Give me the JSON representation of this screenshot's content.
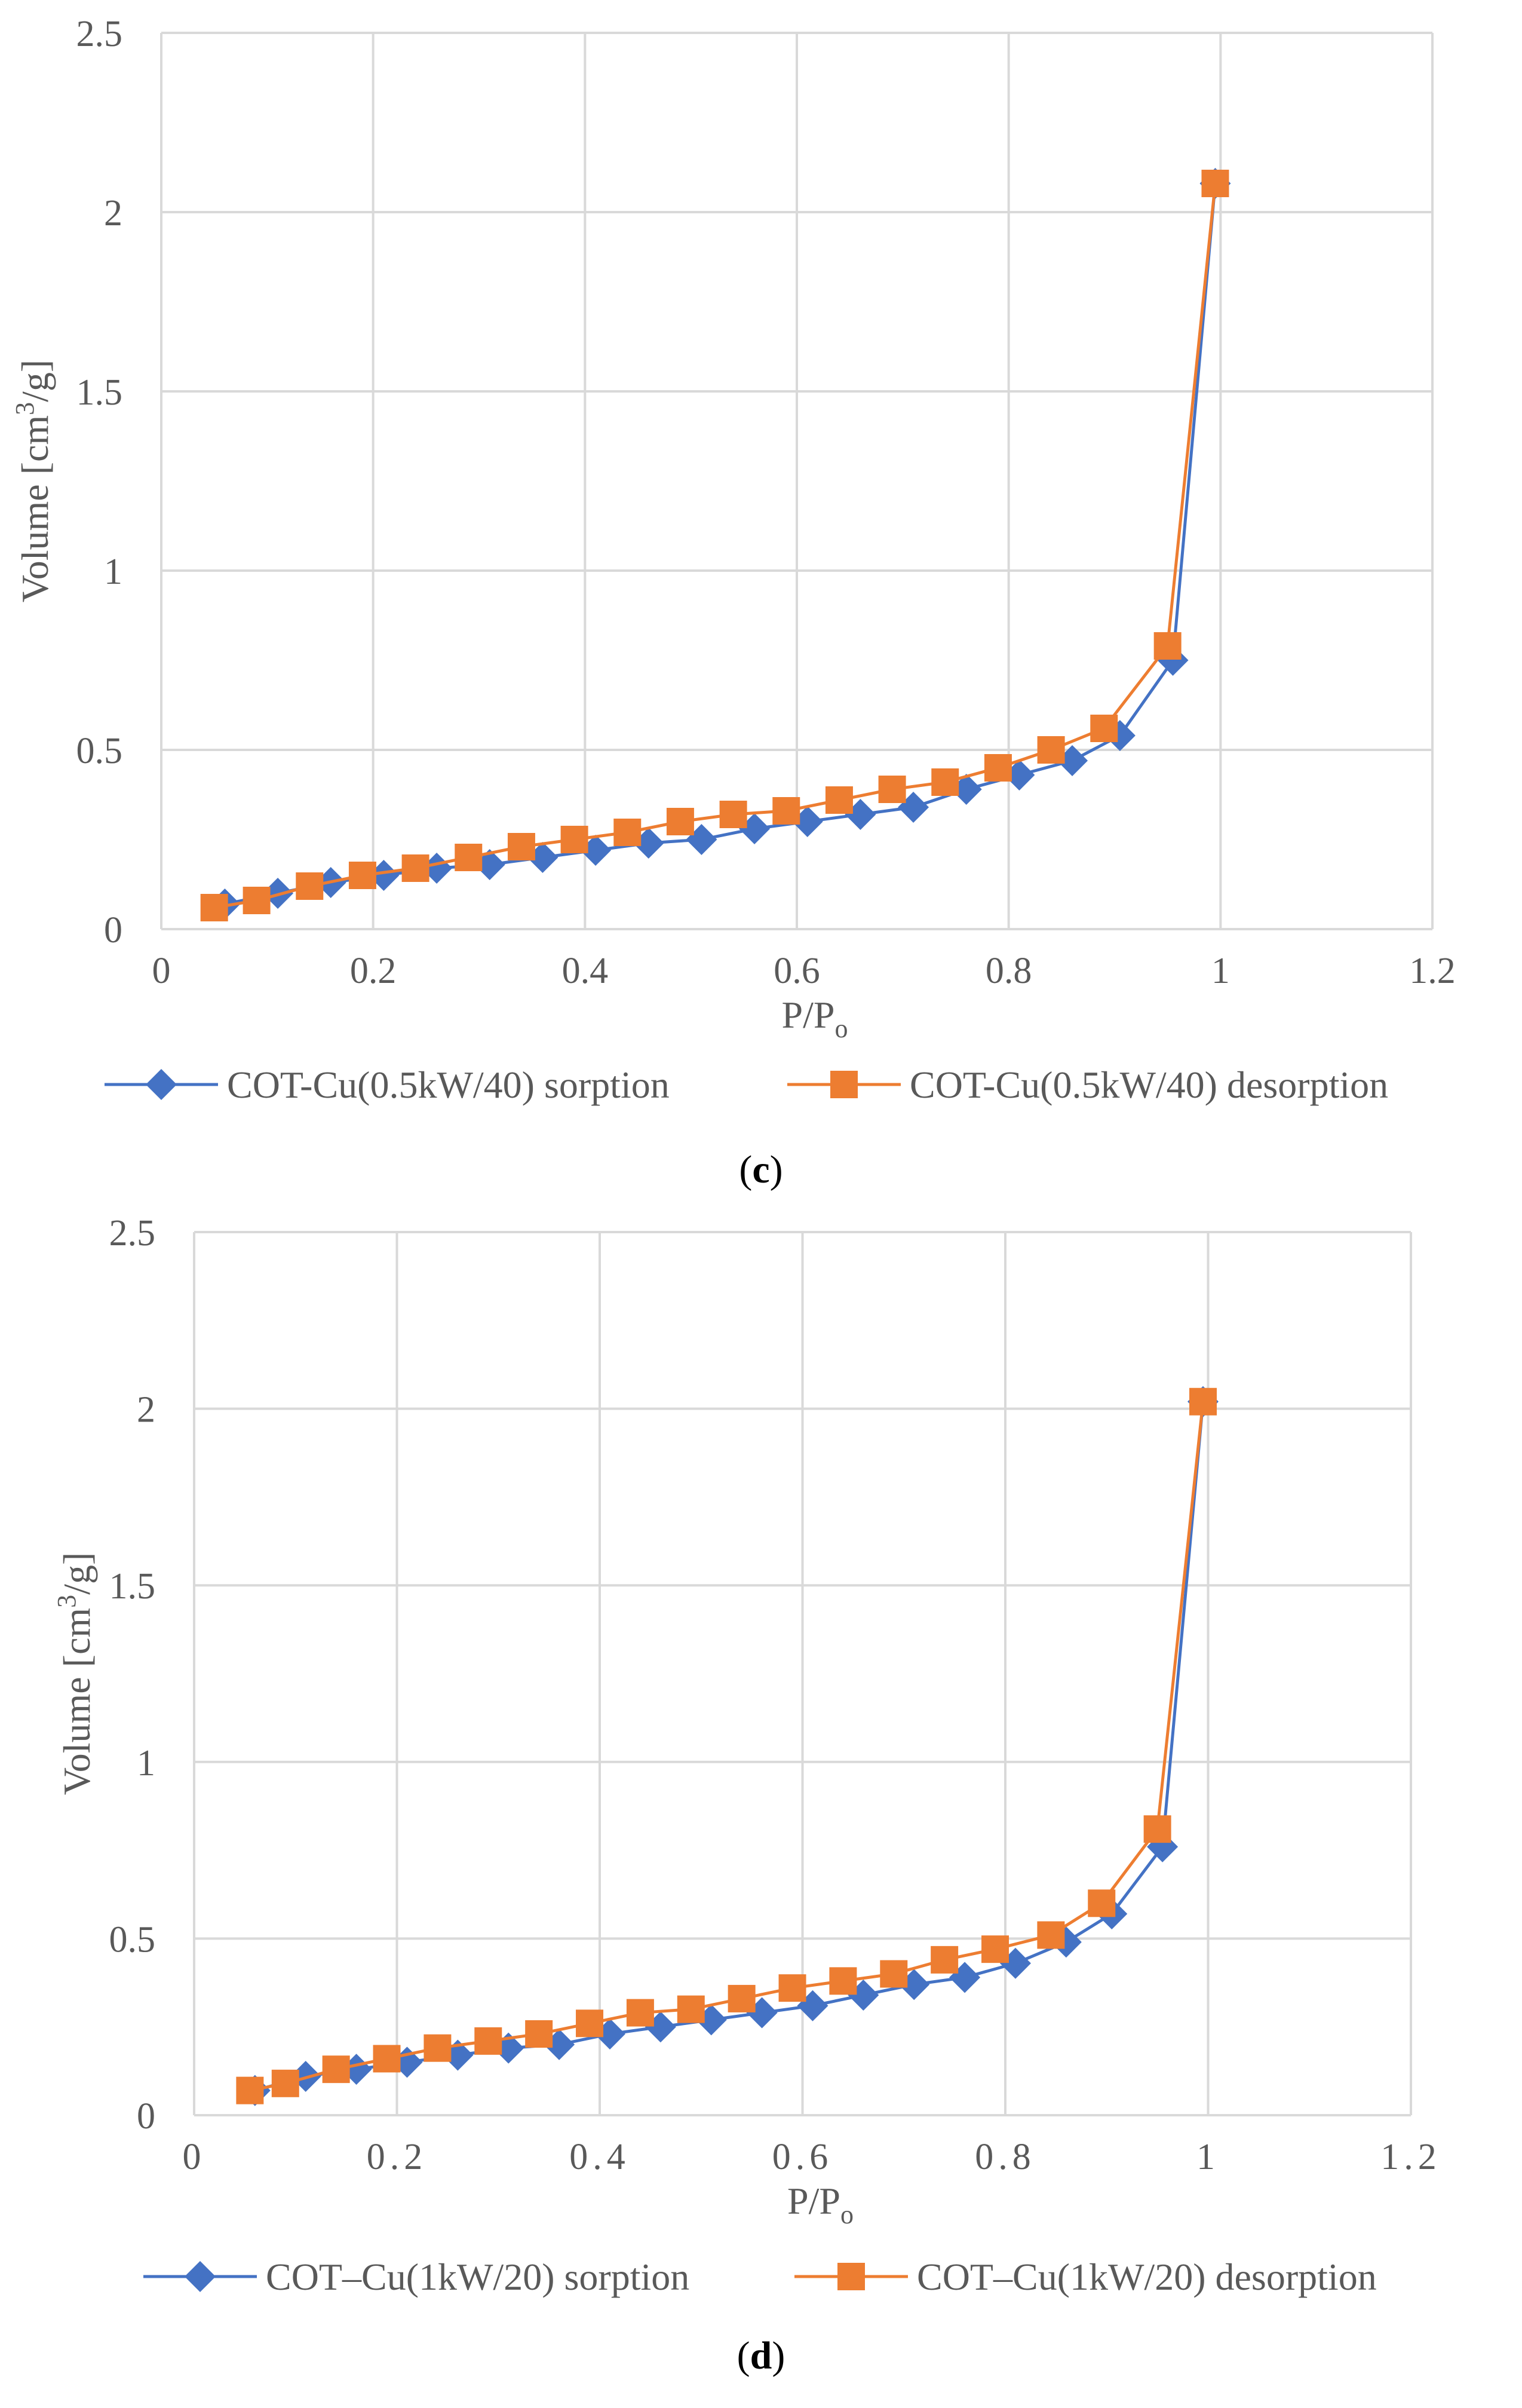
{
  "chart_data": [
    {
      "type": "line",
      "panel": "c",
      "title": "",
      "xlabel": "P/P",
      "xlabel_sub": "o",
      "ylabel": "Volume [cm",
      "ylabel_sup": "3",
      "ylabel_end": "/g]",
      "xlim": [
        0,
        1.2
      ],
      "ylim": [
        0,
        2.5
      ],
      "xticks": [
        "0",
        "0.2",
        "0.4",
        "0.6",
        "0.8",
        "1",
        "1.2"
      ],
      "yticks": [
        "0",
        "0.5",
        "1",
        "1.5",
        "2",
        "2.5"
      ],
      "grid": true,
      "legend_position": "bottom",
      "series": [
        {
          "name": "COT-Cu(0.5kW/40) sorption",
          "color": "#4472C4",
          "marker": "diamond",
          "x": [
            0.06,
            0.11,
            0.16,
            0.21,
            0.26,
            0.31,
            0.36,
            0.41,
            0.46,
            0.51,
            0.56,
            0.61,
            0.66,
            0.71,
            0.76,
            0.81,
            0.86,
            0.905,
            0.955,
            0.995
          ],
          "values": [
            0.07,
            0.1,
            0.13,
            0.15,
            0.17,
            0.18,
            0.2,
            0.22,
            0.24,
            0.25,
            0.28,
            0.3,
            0.32,
            0.34,
            0.39,
            0.43,
            0.47,
            0.54,
            0.75,
            2.08
          ]
        },
        {
          "name": "COT-Cu(0.5kW/40) desorption",
          "color": "#ED7D31",
          "marker": "square",
          "x": [
            0.995,
            0.95,
            0.89,
            0.84,
            0.79,
            0.74,
            0.69,
            0.64,
            0.59,
            0.54,
            0.49,
            0.44,
            0.39,
            0.34,
            0.29,
            0.24,
            0.19,
            0.14,
            0.09,
            0.05
          ],
          "values": [
            2.08,
            0.79,
            0.56,
            0.5,
            0.45,
            0.41,
            0.39,
            0.36,
            0.33,
            0.32,
            0.3,
            0.27,
            0.25,
            0.23,
            0.2,
            0.17,
            0.15,
            0.12,
            0.08,
            0.06
          ]
        }
      ],
      "caption_letter": "c"
    },
    {
      "type": "line",
      "panel": "d",
      "title": "",
      "xlabel": "P/P",
      "xlabel_sub": "o",
      "ylabel": "Volume [cm",
      "ylabel_sup": "3",
      "ylabel_end": "/g]",
      "xlim": [
        0,
        1.2
      ],
      "ylim": [
        0,
        2.5
      ],
      "xticks": [
        "0",
        "0.2",
        "0.4",
        "0.6",
        "0.8",
        "1",
        "1.2"
      ],
      "yticks": [
        "0",
        "0.5",
        "1",
        "1.5",
        "2",
        "2.5"
      ],
      "grid": true,
      "legend_position": "bottom",
      "series": [
        {
          "name": "COT–Cu(1kW/20) sorption",
          "color": "#4472C4",
          "marker": "diamond",
          "x": [
            0.06,
            0.11,
            0.16,
            0.21,
            0.26,
            0.31,
            0.36,
            0.41,
            0.46,
            0.51,
            0.56,
            0.61,
            0.66,
            0.71,
            0.76,
            0.81,
            0.86,
            0.905,
            0.955,
            0.995
          ],
          "values": [
            0.07,
            0.11,
            0.13,
            0.15,
            0.17,
            0.19,
            0.2,
            0.23,
            0.25,
            0.27,
            0.29,
            0.31,
            0.34,
            0.37,
            0.39,
            0.43,
            0.49,
            0.57,
            0.76,
            2.02
          ]
        },
        {
          "name": "COT–Cu(1kW/20) desorption",
          "color": "#ED7D31",
          "marker": "square",
          "x": [
            0.995,
            0.95,
            0.895,
            0.845,
            0.79,
            0.74,
            0.69,
            0.64,
            0.59,
            0.54,
            0.49,
            0.44,
            0.39,
            0.34,
            0.29,
            0.24,
            0.19,
            0.14,
            0.09,
            0.055
          ],
          "values": [
            2.02,
            0.81,
            0.6,
            0.51,
            0.47,
            0.44,
            0.4,
            0.38,
            0.36,
            0.33,
            0.3,
            0.29,
            0.26,
            0.23,
            0.21,
            0.19,
            0.16,
            0.13,
            0.09,
            0.07
          ]
        }
      ],
      "caption_letter": "d"
    }
  ]
}
